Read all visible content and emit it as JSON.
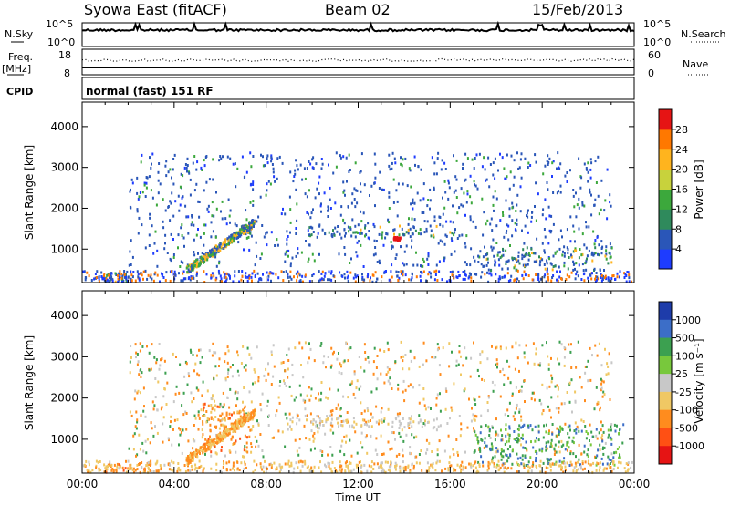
{
  "header": {
    "station": "Syowa East (fitACF)",
    "beam": "Beam 02",
    "date": "15/Feb/2013"
  },
  "top_panels": {
    "nsky_label": "N.Sky",
    "nsearch_label": "N.Search",
    "power_ticks": [
      "10^5",
      "10^0"
    ],
    "freq_label": "Freq.",
    "freq_unit": "[MHz]",
    "freq_ticks": [
      "18",
      "8"
    ],
    "nave_label": "Nave",
    "nave_ticks": [
      "60",
      "0"
    ],
    "cpid_label": "CPID",
    "cpid_value": "normal (fast) 151 RF"
  },
  "chart_data": [
    {
      "type": "heatmap",
      "title": "",
      "xlabel": "Time UT",
      "ylabel": "Slant Range [km]",
      "x_ticks": [
        "00:00",
        "04:00",
        "08:00",
        "12:00",
        "16:00",
        "20:00",
        "00:00"
      ],
      "xlim_hours": [
        0,
        24
      ],
      "y_ticks": [
        1000,
        2000,
        3000,
        4000
      ],
      "ylim": [
        180,
        4600
      ],
      "colorbar": {
        "label": "Power [dB]",
        "ticks": [
          4,
          8,
          12,
          16,
          20,
          24,
          28
        ],
        "range": [
          0,
          30
        ],
        "colors": [
          "#1e3cff",
          "#2a56b8",
          "#2f8a5c",
          "#3ca83c",
          "#c8d23c",
          "#ffb41e",
          "#ff7800",
          "#e61414"
        ]
      },
      "features": [
        {
          "hours": [
            13.5,
            13.8
          ],
          "range_km": [
            1250,
            1320
          ],
          "value": 28
        },
        {
          "hours": [
            6.8,
            7.3
          ],
          "range_km": [
            1400,
            1600
          ],
          "value": 18
        },
        {
          "hours": [
            9.5,
            16.5
          ],
          "range_km": [
            1350,
            1600
          ],
          "value": 10
        },
        {
          "hours": [
            17.5,
            23.0
          ],
          "range_km": [
            500,
            1100
          ],
          "value": 12
        },
        {
          "hours": [
            1.0,
            2.0
          ],
          "range_km": [
            200,
            450
          ],
          "value": 24
        }
      ]
    },
    {
      "type": "heatmap",
      "title": "",
      "xlabel": "Time UT",
      "ylabel": "Slant Range [km]",
      "x_ticks": [
        "00:00",
        "04:00",
        "08:00",
        "12:00",
        "16:00",
        "20:00",
        "00:00"
      ],
      "xlim_hours": [
        0,
        24
      ],
      "y_ticks": [
        1000,
        2000,
        3000,
        4000
      ],
      "ylim": [
        180,
        4600
      ],
      "colorbar": {
        "label": "Velocity [m s⁻¹]",
        "ticks": [
          "1000",
          "500",
          "100",
          "25",
          "-25",
          "-100",
          "-500",
          "-1000"
        ],
        "colors": [
          "#1e3caa",
          "#3c6ec8",
          "#3ca050",
          "#78c83c",
          "#c8c8c8",
          "#f0c864",
          "#ff8c1e",
          "#ff5014",
          "#e61414"
        ]
      },
      "features": [
        {
          "hours": [
            5.0,
            7.5
          ],
          "range_km": [
            700,
            1900
          ],
          "value": -300
        },
        {
          "hours": [
            9.0,
            16.0
          ],
          "range_km": [
            1300,
            1600
          ],
          "value": 0
        },
        {
          "hours": [
            17.0,
            23.5
          ],
          "range_km": [
            400,
            1400
          ],
          "value": 120
        },
        {
          "hours": [
            1.0,
            3.0
          ],
          "range_km": [
            200,
            450
          ],
          "value": -400
        }
      ]
    }
  ]
}
